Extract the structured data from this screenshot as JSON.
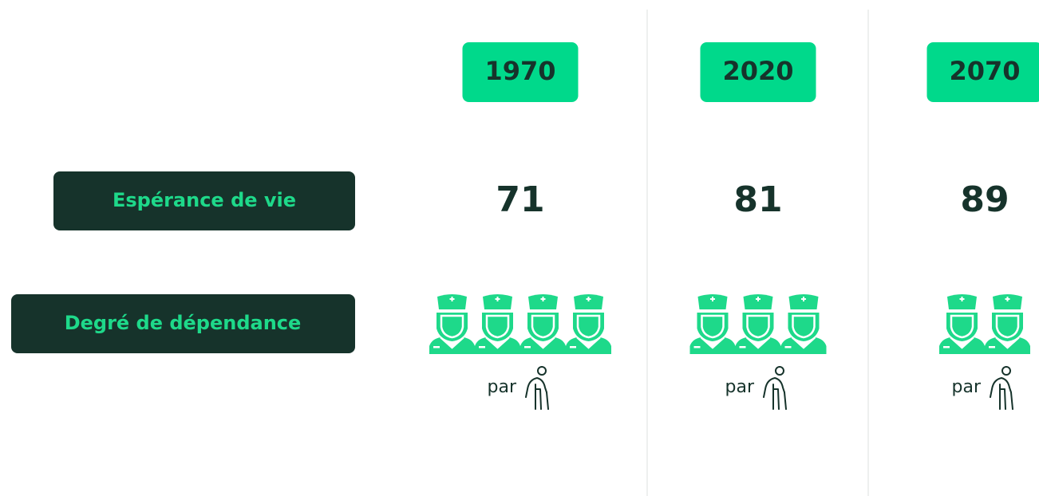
{
  "row_labels": [
    "Espérance de vie",
    "Degré de dépendance"
  ],
  "columns": [
    {
      "year": "1970",
      "life_expectancy": 71,
      "caregivers": 4,
      "per": "par"
    },
    {
      "year": "2020",
      "life_expectancy": 81,
      "caregivers": 3,
      "per": "par"
    },
    {
      "year": "2070",
      "life_expectancy": 89,
      "caregivers": 2,
      "per": "par"
    }
  ]
}
